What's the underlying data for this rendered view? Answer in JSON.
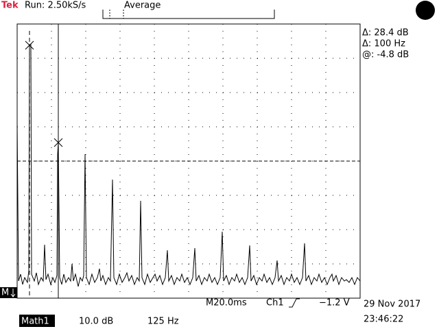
{
  "header": {
    "brand": "Tek",
    "status": "Run: 2.50kS/s",
    "mode": "Average"
  },
  "readouts": {
    "delta_level": "Δ: 28.4 dB",
    "delta_freq": "Δ: 100 Hz",
    "cursor_level": "@: -4.8 dB"
  },
  "marker": "M",
  "status_bar": {
    "timebase": "M20.0ms",
    "channel": "Ch1",
    "trigger_level": "−1.2 V",
    "date": "29 Nov 2017",
    "time": "23:46:22"
  },
  "math": {
    "label": "Math1",
    "scale": "10.0 dB",
    "span": "125 Hz"
  }
}
